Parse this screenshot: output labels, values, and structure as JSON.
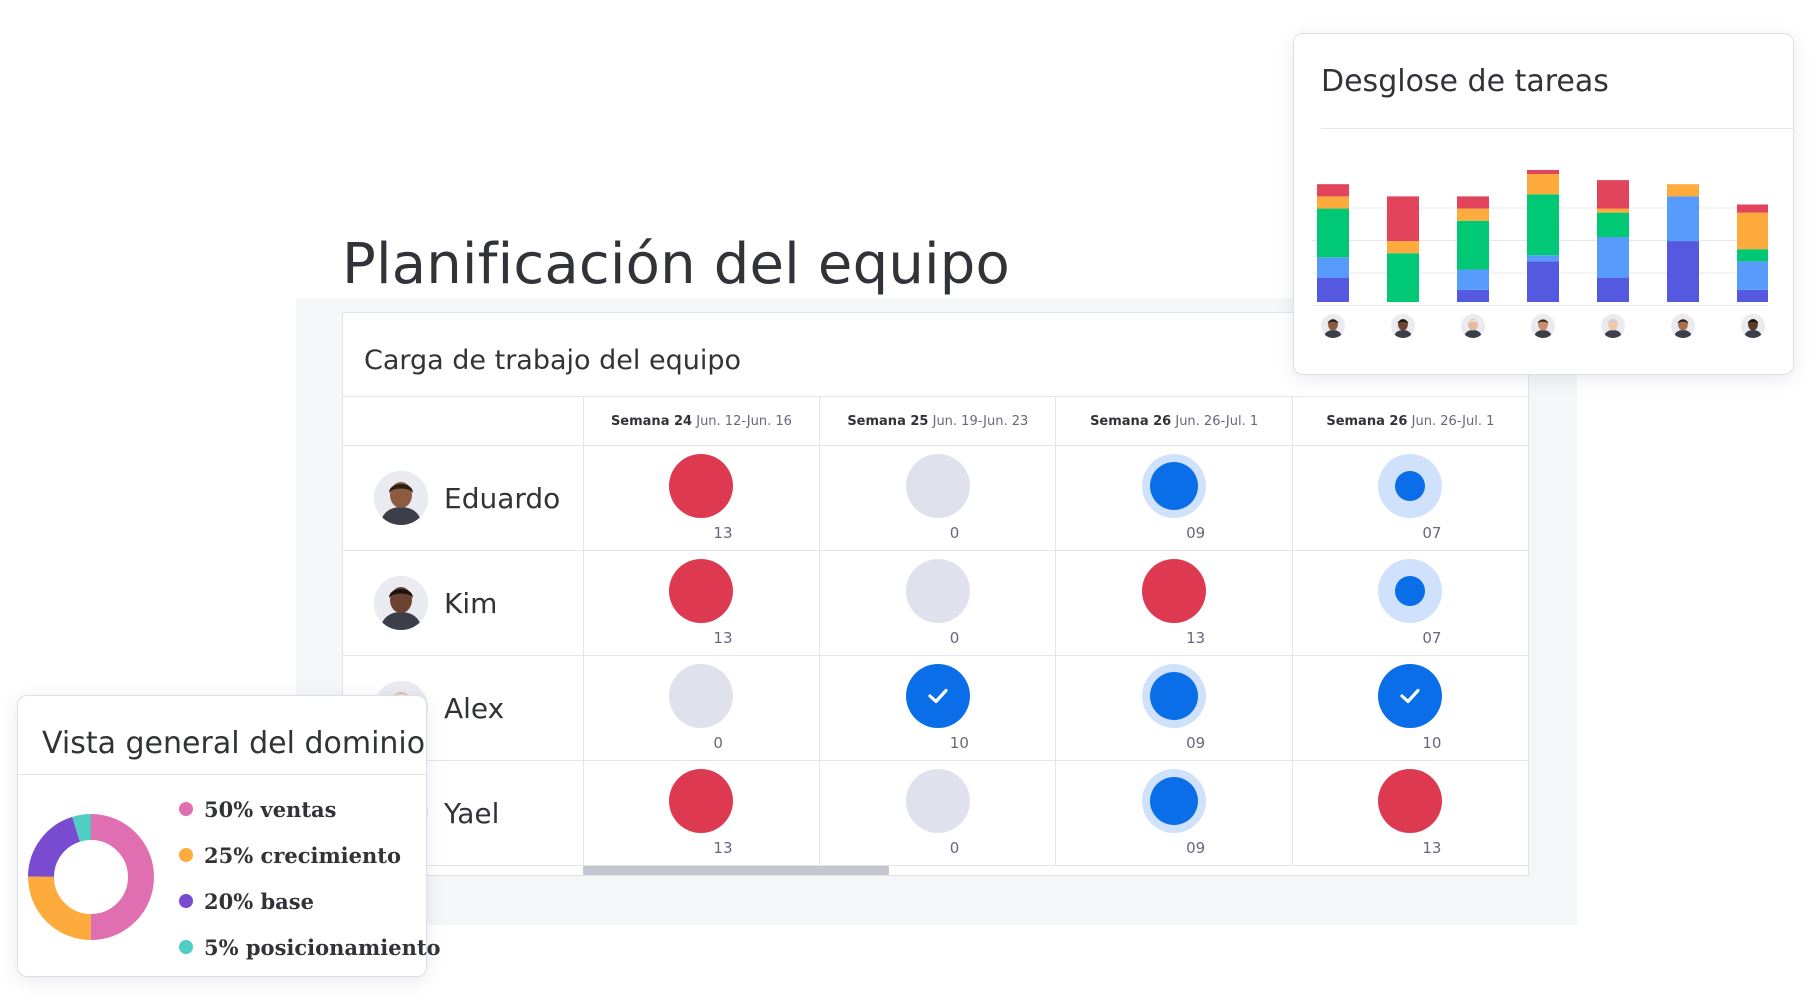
{
  "page": {
    "title": "Planificación del equipo"
  },
  "workload": {
    "title": "Carga de trabajo del equipo",
    "weeks": [
      {
        "label": "Semana 24",
        "dates": "Jun. 12-Jun. 16"
      },
      {
        "label": "Semana 25",
        "dates": "Jun. 19-Jun. 23"
      },
      {
        "label": "Semana 26",
        "dates": "Jun. 26-Jul. 1"
      },
      {
        "label": "Semana 26",
        "dates": "Jun. 26-Jul. 1"
      }
    ],
    "rows": [
      {
        "name": "Eduardo",
        "cells": [
          {
            "status": "overloaded",
            "count": "13"
          },
          {
            "status": "empty",
            "count": "0"
          },
          {
            "status": "busy",
            "count": "09"
          },
          {
            "status": "light",
            "count": "07"
          }
        ]
      },
      {
        "name": "Kim",
        "cells": [
          {
            "status": "overloaded",
            "count": "13"
          },
          {
            "status": "empty",
            "count": "0"
          },
          {
            "status": "overloaded",
            "count": "13"
          },
          {
            "status": "light",
            "count": "07"
          }
        ]
      },
      {
        "name": "Alex",
        "cells": [
          {
            "status": "empty",
            "count": "0"
          },
          {
            "status": "complete",
            "count": "10"
          },
          {
            "status": "busy",
            "count": "09"
          },
          {
            "status": "complete",
            "count": "10"
          }
        ]
      },
      {
        "name": "Yael",
        "cells": [
          {
            "status": "overloaded",
            "count": "13"
          },
          {
            "status": "empty",
            "count": "0"
          },
          {
            "status": "busy",
            "count": "09"
          },
          {
            "status": "overloaded",
            "count": "13"
          }
        ]
      }
    ],
    "status_colors": {
      "overloaded": "#dd3a52",
      "empty": "#dfe2ec",
      "busy": "#0a6ee8",
      "light": "#cfe1fb",
      "complete": "#0a6ee8"
    }
  },
  "task_breakdown": {
    "title": "Desglose de tareas",
    "chart_data": {
      "type": "bar",
      "stacked": true,
      "title": "Desglose de tareas",
      "categories": [
        "",
        "",
        "",
        "",
        "",
        "",
        ""
      ],
      "ylim": [
        0,
        32
      ],
      "grid": true,
      "legend": "none",
      "series": [
        {
          "color": "#5559df",
          "values": [
            6,
            0,
            3,
            10,
            6,
            15,
            3
          ]
        },
        {
          "color": "#579bfc",
          "values": [
            5,
            0,
            5,
            1.5,
            10,
            11,
            7
          ]
        },
        {
          "color": "#00c875",
          "values": [
            12,
            12,
            12,
            15,
            6,
            0,
            3
          ]
        },
        {
          "color": "#fdab3d",
          "values": [
            3,
            3,
            3,
            5,
            1,
            3,
            9
          ]
        },
        {
          "color": "#e2445c",
          "values": [
            3,
            11,
            3,
            1,
            7,
            0,
            2
          ]
        }
      ]
    }
  },
  "domain_overview": {
    "title": "Vista general del dominio",
    "chart_data": {
      "type": "pie",
      "donut": true,
      "slices": [
        {
          "label": "50% ventas",
          "value": 50,
          "color": "#df6fb0"
        },
        {
          "label": "25% crecimiento",
          "value": 25,
          "color": "#fdab3d"
        },
        {
          "label": "20% base",
          "value": 20,
          "color": "#784bd1"
        },
        {
          "label": "5% posicionamiento",
          "value": 5,
          "color": "#4ecdc4"
        }
      ]
    }
  }
}
